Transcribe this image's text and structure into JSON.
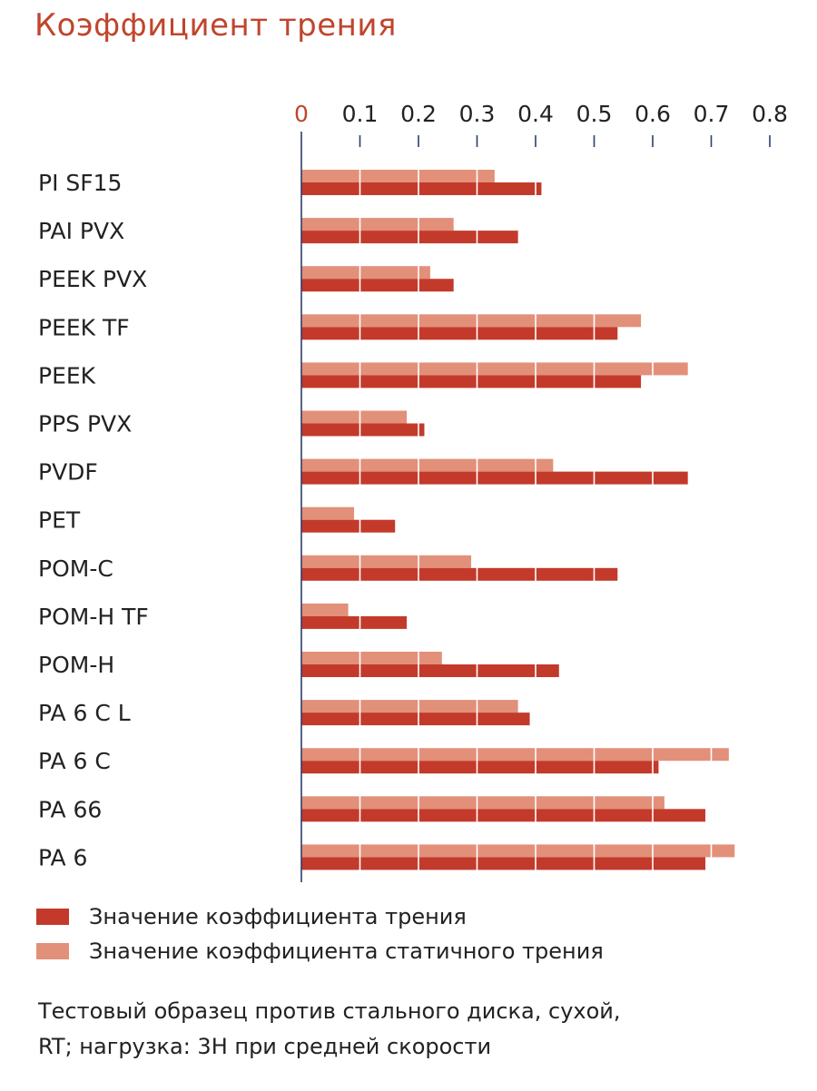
{
  "title": "Коэффициент трения",
  "chart_data": {
    "type": "bar",
    "orientation": "horizontal",
    "categories": [
      "PI SF15",
      "PAI PVX",
      "PEEK PVX",
      "PEEK TF",
      "PEEK",
      "PPS PVX",
      "PVDF",
      "PET",
      "POM-C",
      "POM-H TF",
      "POM-H",
      "PA 6 C L",
      "PA 6 C",
      "PA 66",
      "PA 6"
    ],
    "series": [
      {
        "name": "Значение коэффициента статичного трения",
        "color": "#e2907a",
        "values": [
          0.33,
          0.26,
          0.22,
          0.58,
          0.66,
          0.18,
          0.43,
          0.09,
          0.29,
          0.08,
          0.24,
          0.37,
          0.73,
          0.62,
          0.74
        ]
      },
      {
        "name": "Значение коэффициента трения",
        "color": "#c33a2b",
        "values": [
          0.41,
          0.37,
          0.26,
          0.54,
          0.58,
          0.21,
          0.66,
          0.16,
          0.54,
          0.18,
          0.44,
          0.39,
          0.61,
          0.69,
          0.69
        ]
      }
    ],
    "xlim": [
      0,
      0.8
    ],
    "ticks": [
      "0",
      "0.1",
      "0.2",
      "0.3",
      "0.4",
      "0.5",
      "0.6",
      "0.7",
      "0.8"
    ],
    "axis_position": "top",
    "grid": true,
    "legend_position": "bottom"
  },
  "legend": {
    "items": [
      {
        "label": "Значение коэффициента трения",
        "color": "#c33a2b"
      },
      {
        "label": "Значение коэффициента статичного трения",
        "color": "#e2907a"
      }
    ]
  },
  "note": {
    "line1": "Тестовый образец против стального диска, сухой,",
    "line2": "RT; нагрузка: 3Н при средней скорости"
  }
}
